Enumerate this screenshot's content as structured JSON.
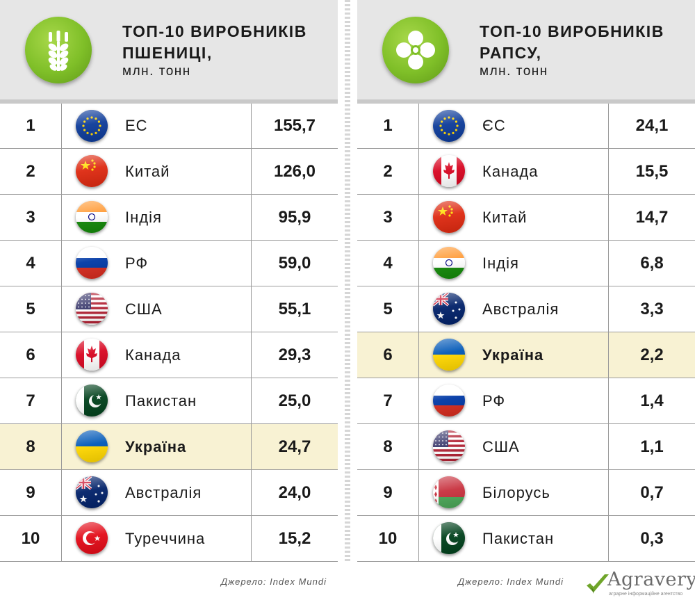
{
  "chart_data": [
    {
      "type": "table",
      "title": "ТОП-10 ВИРОБНИКІВ ПШЕНИЦІ,",
      "subtitle": "млн. тонн",
      "source": "Джерело: Index Mundi",
      "highlight_rank": 8,
      "rows": [
        {
          "rank": "1",
          "country": "ЕС",
          "value": 155.7,
          "value_label": "155,7",
          "flag": "eu-flag-icon"
        },
        {
          "rank": "2",
          "country": "Китай",
          "value": 126.0,
          "value_label": "126,0",
          "flag": "china-flag-icon"
        },
        {
          "rank": "3",
          "country": "Індія",
          "value": 95.9,
          "value_label": "95,9",
          "flag": "india-flag-icon"
        },
        {
          "rank": "4",
          "country": "РФ",
          "value": 59.0,
          "value_label": "59,0",
          "flag": "russia-flag-icon"
        },
        {
          "rank": "5",
          "country": "США",
          "value": 55.1,
          "value_label": "55,1",
          "flag": "usa-flag-icon"
        },
        {
          "rank": "6",
          "country": "Канада",
          "value": 29.3,
          "value_label": "29,3",
          "flag": "canada-flag-icon"
        },
        {
          "rank": "7",
          "country": "Пакистан",
          "value": 25.0,
          "value_label": "25,0",
          "flag": "pakistan-flag-icon"
        },
        {
          "rank": "8",
          "country": "Україна",
          "value": 24.7,
          "value_label": "24,7",
          "flag": "ukraine-flag-icon"
        },
        {
          "rank": "9",
          "country": "Австралія",
          "value": 24.0,
          "value_label": "24,0",
          "flag": "australia-flag-icon"
        },
        {
          "rank": "10",
          "country": "Туреччина",
          "value": 15.2,
          "value_label": "15,2",
          "flag": "turkey-flag-icon"
        }
      ]
    },
    {
      "type": "table",
      "title": "ТОП-10 ВИРОБНИКІВ РАПСУ,",
      "subtitle": "млн. тонн",
      "source": "Джерело: Index Mundi",
      "highlight_rank": 6,
      "rows": [
        {
          "rank": "1",
          "country": "ЄС",
          "value": 24.1,
          "value_label": "24,1",
          "flag": "eu-flag-icon"
        },
        {
          "rank": "2",
          "country": "Канада",
          "value": 15.5,
          "value_label": "15,5",
          "flag": "canada-flag-icon"
        },
        {
          "rank": "3",
          "country": "Китай",
          "value": 14.7,
          "value_label": "14,7",
          "flag": "china-flag-icon"
        },
        {
          "rank": "4",
          "country": "Індія",
          "value": 6.8,
          "value_label": "6,8",
          "flag": "india-flag-icon"
        },
        {
          "rank": "5",
          "country": "Австралія",
          "value": 3.3,
          "value_label": "3,3",
          "flag": "australia-flag-icon"
        },
        {
          "rank": "6",
          "country": "Україна",
          "value": 2.2,
          "value_label": "2,2",
          "flag": "ukraine-flag-icon"
        },
        {
          "rank": "7",
          "country": "РФ",
          "value": 1.4,
          "value_label": "1,4",
          "flag": "russia-flag-icon"
        },
        {
          "rank": "8",
          "country": "США",
          "value": 1.1,
          "value_label": "1,1",
          "flag": "usa-flag-icon"
        },
        {
          "rank": "9",
          "country": "Білорусь",
          "value": 0.7,
          "value_label": "0,7",
          "flag": "belarus-flag-icon"
        },
        {
          "rank": "10",
          "country": "Пакистан",
          "value": 0.3,
          "value_label": "0,3",
          "flag": "pakistan-flag-icon"
        }
      ]
    }
  ],
  "panels": {
    "left": {
      "title_line1": "ТОП-10 ВИРОБНИКІВ",
      "title_line2": "ПШЕНИЦІ,",
      "subtitle": "млн. тонн",
      "icon": "wheat-icon"
    },
    "right": {
      "title_line1": "ТОП-10 ВИРОБНИКІВ",
      "title_line2": "РАПСУ,",
      "subtitle": "млн. тонн",
      "icon": "rapeseed-flower-icon"
    }
  },
  "footer": {
    "left_source": "Джерело: Index Mundi",
    "right_source": "Джерело: Index Mundi",
    "logo_text": "Agravery",
    "logo_tagline": "аграрне інформаційне агентство",
    "logo_icon": "checkmark-logo-icon"
  },
  "colors": {
    "badge_green": "#7fbf28",
    "header_gray": "#e6e6e6",
    "highlight_row": "#f8f2d3",
    "logo_check": "#6fa52a"
  }
}
